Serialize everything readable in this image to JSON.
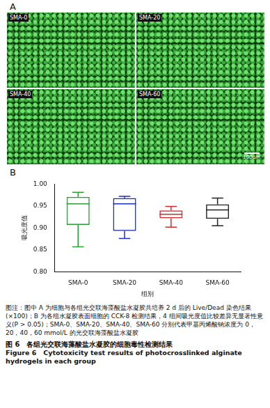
{
  "panel_a": {
    "label": "A",
    "images": [
      {
        "label": "SMA-0"
      },
      {
        "label": "SMA-20"
      },
      {
        "label": "SMA-40"
      },
      {
        "label": "SMA-60"
      }
    ],
    "scale_bar": "100μm"
  },
  "chart_data": {
    "type": "box",
    "panel_label": "B",
    "xlabel": "组别",
    "ylabel": "吸光度值",
    "categories": [
      "SMA-0",
      "SMA-20",
      "SMA-40",
      "SMA-60"
    ],
    "values": [
      {
        "min": 0.857,
        "q1": 0.907,
        "median": 0.955,
        "q3": 0.971,
        "max": 0.981
      },
      {
        "min": 0.876,
        "q1": 0.893,
        "median": 0.955,
        "q3": 0.968,
        "max": 0.972
      },
      {
        "min": 0.902,
        "q1": 0.922,
        "median": 0.931,
        "q3": 0.94,
        "max": 0.949
      },
      {
        "min": 0.905,
        "q1": 0.921,
        "median": 0.941,
        "q3": 0.954,
        "max": 0.968
      }
    ],
    "colors": [
      "#2e9a3a",
      "#1c2fb4",
      "#d42a2a",
      "#222222"
    ],
    "ylim": [
      0.8,
      1.0
    ],
    "yticks": [
      {
        "value": 0.8,
        "label": "0.80"
      },
      {
        "value": 0.85,
        "label": "0.85"
      },
      {
        "value": 0.9,
        "label": "0.90"
      },
      {
        "value": 0.95,
        "label": "0.95"
      },
      {
        "value": 1.0,
        "label": "1.00"
      }
    ],
    "grid": false
  },
  "caption": {
    "note": "图注：图中 A 为细胞与各组光交联海藻酸盐水凝胶共培养 2 d 后的 Live/Dead 染色结果(×100)；B 为各组水凝胶表面细胞的 CCK-8 检测结果，4 组间吸光度值比较差异无显著性意义(P > 0.05)；SMA-0、SMA-20、SMA-40、SMA-60 分别代表甲基丙烯酸钠浓度为 0，20，40，60 mmol/L 的光交联海藻酸盐水凝胶",
    "title_cn": "图 6　各组光交联海藻酸盐水凝胶的细胞毒性检测结果",
    "title_en": "Figure 6　Cytotoxicity test results of photocrosslinked alginate hydrogels in each group"
  }
}
